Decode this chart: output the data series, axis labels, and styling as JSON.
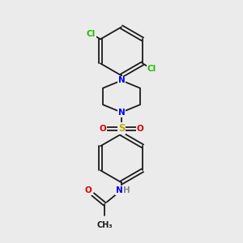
{
  "bg_color": "#ebebeb",
  "bond_color": "#1a1a1a",
  "N_color": "#0000ee",
  "O_color": "#dd0000",
  "S_color": "#bbaa00",
  "Cl_color": "#22bb00",
  "H_color": "#888888",
  "lw": 1.3,
  "fs": 7.5,
  "figsize": [
    3.0,
    3.0
  ],
  "dpi": 100,
  "xlim": [
    1.5,
    8.5
  ],
  "ylim": [
    0.5,
    9.5
  ]
}
